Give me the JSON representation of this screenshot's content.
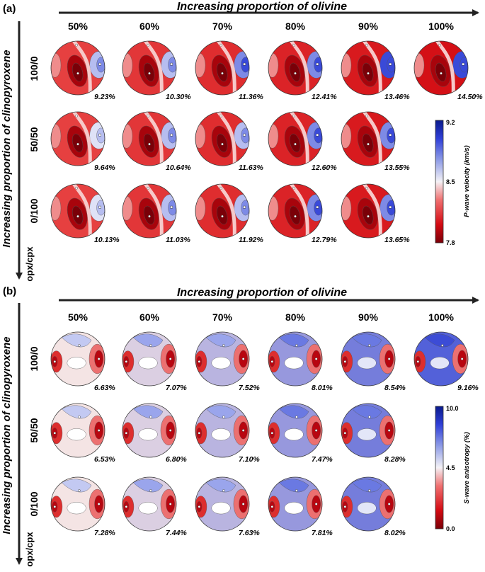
{
  "panels": [
    {
      "id": "a",
      "label": "(a)",
      "top_title": "Increasing proportion of olivine",
      "side_title": "Increasing proportion of clinopyroxene",
      "ratio_label": "opx/cpx",
      "column_labels": [
        "50%",
        "60%",
        "70%",
        "80%",
        "90%",
        "100%"
      ],
      "row_labels": [
        "100/0",
        "50/50",
        "0/100"
      ],
      "values": [
        [
          "9.23%",
          "10.30%",
          "11.36%",
          "12.41%",
          "13.46%",
          "14.50%"
        ],
        [
          "9.64%",
          "10.64%",
          "11.63%",
          "12.60%",
          "13.55%"
        ],
        [
          "10.13%",
          "11.03%",
          "11.92%",
          "12.79%",
          "13.65%"
        ]
      ],
      "colorbar": {
        "title": "P-wave velocity (km/s)",
        "max_label": "9.2",
        "mid_label": "8.5",
        "min_label": "7.8",
        "max": 9.2,
        "mid": 8.5,
        "min": 7.8,
        "high_color": "#0a1a8c",
        "mid_color": "#f4f2f6",
        "low_color": "#7a0008"
      }
    },
    {
      "id": "b",
      "label": "(b)",
      "top_title": "Increasing proportion of olivine",
      "side_title": "Increasing proportion of clinopyroxene",
      "ratio_label": "opx/cpx",
      "column_labels": [
        "50%",
        "60%",
        "70%",
        "80%",
        "90%",
        "100%"
      ],
      "row_labels": [
        "100/0",
        "50/50",
        "0/100"
      ],
      "values": [
        [
          "6.63%",
          "7.07%",
          "7.52%",
          "8.01%",
          "8.54%",
          "9.16%"
        ],
        [
          "6.53%",
          "6.80%",
          "7.10%",
          "7.47%",
          "8.28%"
        ],
        [
          "7.28%",
          "7.44%",
          "7.63%",
          "7.81%",
          "8.02%"
        ]
      ],
      "colorbar": {
        "title": "S-wave anisotropy (%)",
        "max_label": "10.0",
        "mid_label": "4.5",
        "min_label": "0.0",
        "max": 10.0,
        "mid": 4.5,
        "min": 0.0,
        "high_color": "#0a1a8c",
        "mid_color": "#f4f2f6",
        "low_color": "#7a0008"
      }
    }
  ]
}
